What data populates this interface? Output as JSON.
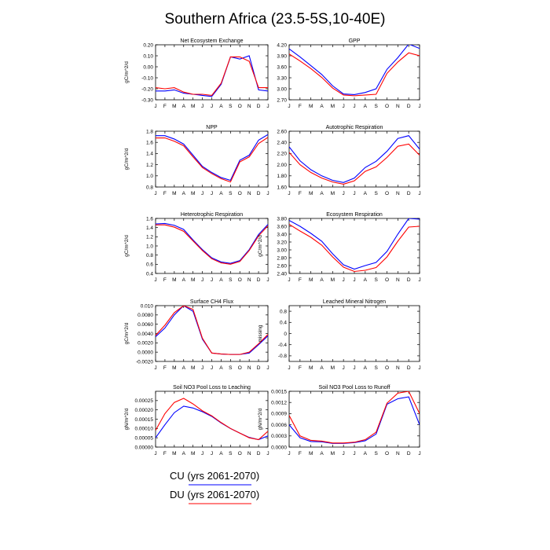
{
  "figure_title": "Southern Africa (23.5-5S,10-40E)",
  "legend": [
    {
      "label": "CU (yrs 2061-2070)",
      "color": "#0000ff"
    },
    {
      "label": "DU (yrs 2061-2070)",
      "color": "#ff0000"
    }
  ],
  "colors": {
    "cu": "#0000ff",
    "du": "#ff0000"
  },
  "chart_data": [
    {
      "type": "line",
      "title": "Net Ecosystem Exchange",
      "ylabel": "gC/m^2/d",
      "x": [
        "J",
        "F",
        "M",
        "A",
        "M",
        "J",
        "J",
        "A",
        "S",
        "O",
        "N",
        "D",
        "J"
      ],
      "ylim": [
        -0.3,
        0.2
      ],
      "yticks": [
        "-0.30",
        "-0.20",
        "-0.10",
        "0.00",
        "0.10",
        "0.20"
      ],
      "series": [
        {
          "name": "CU (yrs 2061-2070)",
          "color": "#0000ff",
          "values": [
            -0.22,
            -0.22,
            -0.21,
            -0.24,
            -0.25,
            -0.26,
            -0.27,
            -0.16,
            0.09,
            0.07,
            0.1,
            -0.21,
            -0.22
          ]
        },
        {
          "name": "DU (yrs 2061-2070)",
          "color": "#ff0000",
          "values": [
            -0.19,
            -0.2,
            -0.19,
            -0.23,
            -0.25,
            -0.25,
            -0.26,
            -0.15,
            0.09,
            0.09,
            0.05,
            -0.19,
            -0.19
          ]
        }
      ]
    },
    {
      "type": "line",
      "title": "GPP",
      "ylabel": "",
      "x": [
        "J",
        "F",
        "M",
        "A",
        "M",
        "J",
        "J",
        "A",
        "S",
        "O",
        "N",
        "D",
        "J"
      ],
      "ylim": [
        2.7,
        4.2
      ],
      "yticks": [
        "2.70",
        "3.00",
        "3.30",
        "3.60",
        "3.90",
        "4.20"
      ],
      "series": [
        {
          "name": "CU (yrs 2061-2070)",
          "color": "#0000ff",
          "values": [
            4.09,
            3.87,
            3.63,
            3.39,
            3.08,
            2.86,
            2.84,
            2.9,
            3.0,
            3.53,
            3.85,
            4.22,
            4.1
          ]
        },
        {
          "name": "DU (yrs 2061-2070)",
          "color": "#ff0000",
          "values": [
            3.95,
            3.76,
            3.55,
            3.31,
            3.02,
            2.83,
            2.81,
            2.83,
            2.85,
            3.42,
            3.73,
            3.98,
            3.9
          ]
        }
      ]
    },
    {
      "type": "line",
      "title": "NPP",
      "ylabel": "gC/m^2/d",
      "x": [
        "J",
        "F",
        "M",
        "A",
        "M",
        "J",
        "J",
        "A",
        "S",
        "O",
        "N",
        "D",
        "J"
      ],
      "ylim": [
        0.8,
        1.8
      ],
      "yticks": [
        "0.8",
        "1.0",
        "1.2",
        "1.4",
        "1.6",
        "1.8"
      ],
      "series": [
        {
          "name": "CU (yrs 2061-2070)",
          "color": "#0000ff",
          "values": [
            1.72,
            1.72,
            1.66,
            1.57,
            1.37,
            1.17,
            1.06,
            0.97,
            0.92,
            1.28,
            1.37,
            1.64,
            1.74
          ]
        },
        {
          "name": "DU (yrs 2061-2070)",
          "color": "#ff0000",
          "values": [
            1.68,
            1.68,
            1.62,
            1.54,
            1.34,
            1.15,
            1.04,
            0.95,
            0.89,
            1.25,
            1.34,
            1.58,
            1.69
          ]
        }
      ]
    },
    {
      "type": "line",
      "title": "Autotrophic Respiration",
      "ylabel": "",
      "x": [
        "J",
        "F",
        "M",
        "A",
        "M",
        "J",
        "J",
        "A",
        "S",
        "O",
        "N",
        "D",
        "J"
      ],
      "ylim": [
        1.6,
        2.6
      ],
      "yticks": [
        "1.60",
        "1.80",
        "2.00",
        "2.20",
        "2.40",
        "2.60"
      ],
      "series": [
        {
          "name": "CU (yrs 2061-2070)",
          "color": "#0000ff",
          "values": [
            2.32,
            2.07,
            1.91,
            1.8,
            1.72,
            1.68,
            1.76,
            1.95,
            2.06,
            2.24,
            2.47,
            2.52,
            2.28
          ]
        },
        {
          "name": "DU (yrs 2061-2070)",
          "color": "#ff0000",
          "values": [
            2.22,
            2.0,
            1.86,
            1.76,
            1.69,
            1.65,
            1.71,
            1.88,
            1.96,
            2.13,
            2.33,
            2.37,
            2.17
          ]
        }
      ]
    },
    {
      "type": "line",
      "title": "Heterotrophic Respiration",
      "ylabel": "gC/m^2/d",
      "x": [
        "J",
        "F",
        "M",
        "A",
        "M",
        "J",
        "J",
        "A",
        "S",
        "O",
        "N",
        "D",
        "J"
      ],
      "ylim": [
        0.4,
        1.6
      ],
      "yticks": [
        "0.4",
        "0.6",
        "0.8",
        "1.0",
        "1.2",
        "1.4",
        "1.6"
      ],
      "series": [
        {
          "name": "CU (yrs 2061-2070)",
          "color": "#0000ff",
          "values": [
            1.48,
            1.49,
            1.45,
            1.36,
            1.13,
            0.92,
            0.74,
            0.65,
            0.62,
            0.68,
            0.92,
            1.25,
            1.47
          ]
        },
        {
          "name": "DU (yrs 2061-2070)",
          "color": "#ff0000",
          "values": [
            1.46,
            1.46,
            1.41,
            1.32,
            1.11,
            0.9,
            0.72,
            0.63,
            0.6,
            0.66,
            0.9,
            1.22,
            1.44
          ]
        }
      ]
    },
    {
      "type": "line",
      "title": "Ecosystem Respiration",
      "ylabel": "gC/m^2/d",
      "x": [
        "J",
        "F",
        "M",
        "A",
        "M",
        "J",
        "J",
        "A",
        "S",
        "O",
        "N",
        "D",
        "J"
      ],
      "ylim": [
        2.4,
        3.8
      ],
      "yticks": [
        "2.40",
        "2.60",
        "2.80",
        "3.00",
        "3.20",
        "3.40",
        "3.60",
        "3.80"
      ],
      "series": [
        {
          "name": "CU (yrs 2061-2070)",
          "color": "#0000ff",
          "values": [
            3.75,
            3.6,
            3.42,
            3.22,
            2.9,
            2.62,
            2.51,
            2.6,
            2.68,
            2.96,
            3.4,
            3.8,
            3.78
          ]
        },
        {
          "name": "DU (yrs 2061-2070)",
          "color": "#ff0000",
          "values": [
            3.65,
            3.48,
            3.32,
            3.12,
            2.82,
            2.56,
            2.45,
            2.48,
            2.55,
            2.82,
            3.22,
            3.58,
            3.6
          ]
        }
      ]
    },
    {
      "type": "line",
      "title": "Surface CH4 Flux",
      "ylabel": "gC/m^2/d",
      "x": [
        "J",
        "F",
        "M",
        "A",
        "M",
        "J",
        "J",
        "A",
        "S",
        "O",
        "N",
        "D",
        "J"
      ],
      "ylim": [
        -0.002,
        0.01
      ],
      "yticks": [
        "-0.0020",
        "0.0000",
        "0.0020",
        "0.0040",
        "0.0060",
        "0.0080",
        "0.010"
      ],
      "series": [
        {
          "name": "CU (yrs 2061-2070)",
          "color": "#0000ff",
          "values": [
            0.0033,
            0.0052,
            0.008,
            0.01,
            0.0088,
            0.0028,
            -0.0002,
            -0.0004,
            -0.0005,
            -0.0005,
            -0.0002,
            0.0016,
            0.0035
          ]
        },
        {
          "name": "DU (yrs 2061-2070)",
          "color": "#ff0000",
          "values": [
            0.0036,
            0.0058,
            0.0085,
            0.01,
            0.0092,
            0.003,
            -0.0002,
            -0.0004,
            -0.0005,
            -0.0005,
            0.0,
            0.0018,
            0.0038
          ]
        }
      ]
    },
    {
      "type": "line",
      "title": "Leached Mineral Nitrogen",
      "ylabel": "missing",
      "x": [
        "J",
        "F",
        "M",
        "A",
        "M",
        "J",
        "J",
        "A",
        "S",
        "O",
        "N",
        "D",
        "J"
      ],
      "ylim": [
        -1.0,
        1.0
      ],
      "yticks": [
        "-0.8",
        "-0.4",
        "0",
        "0.4",
        "0.8"
      ],
      "series": []
    },
    {
      "type": "line",
      "title": "Soil NO3 Pool Loss to Leaching",
      "ylabel": "gN/m^2/d",
      "x": [
        "J",
        "F",
        "M",
        "A",
        "M",
        "J",
        "J",
        "A",
        "S",
        "O",
        "N",
        "D",
        "J"
      ],
      "ylim": [
        0.0,
        0.0003
      ],
      "yticks": [
        "0.00000",
        "0.00005",
        "0.00010",
        "0.00015",
        "0.00020",
        "0.00025"
      ],
      "series": [
        {
          "name": "CU (yrs 2061-2070)",
          "color": "#0000ff",
          "values": [
            5e-05,
            0.00012,
            0.000185,
            0.00022,
            0.00021,
            0.00019,
            0.000165,
            0.00013,
            0.0001,
            7.5e-05,
            5.2e-05,
            4e-05,
            6e-05
          ]
        },
        {
          "name": "DU (yrs 2061-2070)",
          "color": "#ff0000",
          "values": [
            9e-05,
            0.00018,
            0.00024,
            0.000262,
            0.000232,
            0.000195,
            0.000168,
            0.000132,
            0.0001,
            7.5e-05,
            5e-05,
            4e-05,
            8.5e-05
          ]
        }
      ]
    },
    {
      "type": "line",
      "title": "Soil NO3 Pool Loss to Runoff",
      "ylabel": "gN/m^2/d",
      "x": [
        "J",
        "F",
        "M",
        "A",
        "M",
        "J",
        "J",
        "A",
        "S",
        "O",
        "N",
        "D",
        "J"
      ],
      "ylim": [
        0.0,
        0.0015
      ],
      "yticks": [
        "0.0000",
        "0.0003",
        "0.0006",
        "0.0009",
        "0.0012",
        "0.0015"
      ],
      "series": [
        {
          "name": "CU (yrs 2061-2070)",
          "color": "#0000ff",
          "values": [
            0.0006,
            0.00025,
            0.00015,
            0.00014,
            0.0001,
            0.0001,
            0.00012,
            0.00017,
            0.00035,
            0.00115,
            0.0013,
            0.00135,
            0.0006
          ]
        },
        {
          "name": "DU (yrs 2061-2070)",
          "color": "#ff0000",
          "values": [
            0.00085,
            0.0003,
            0.00018,
            0.00016,
            0.00011,
            0.00011,
            0.00013,
            0.0002,
            0.0004,
            0.00118,
            0.00145,
            0.0015,
            0.0009
          ]
        }
      ]
    }
  ]
}
